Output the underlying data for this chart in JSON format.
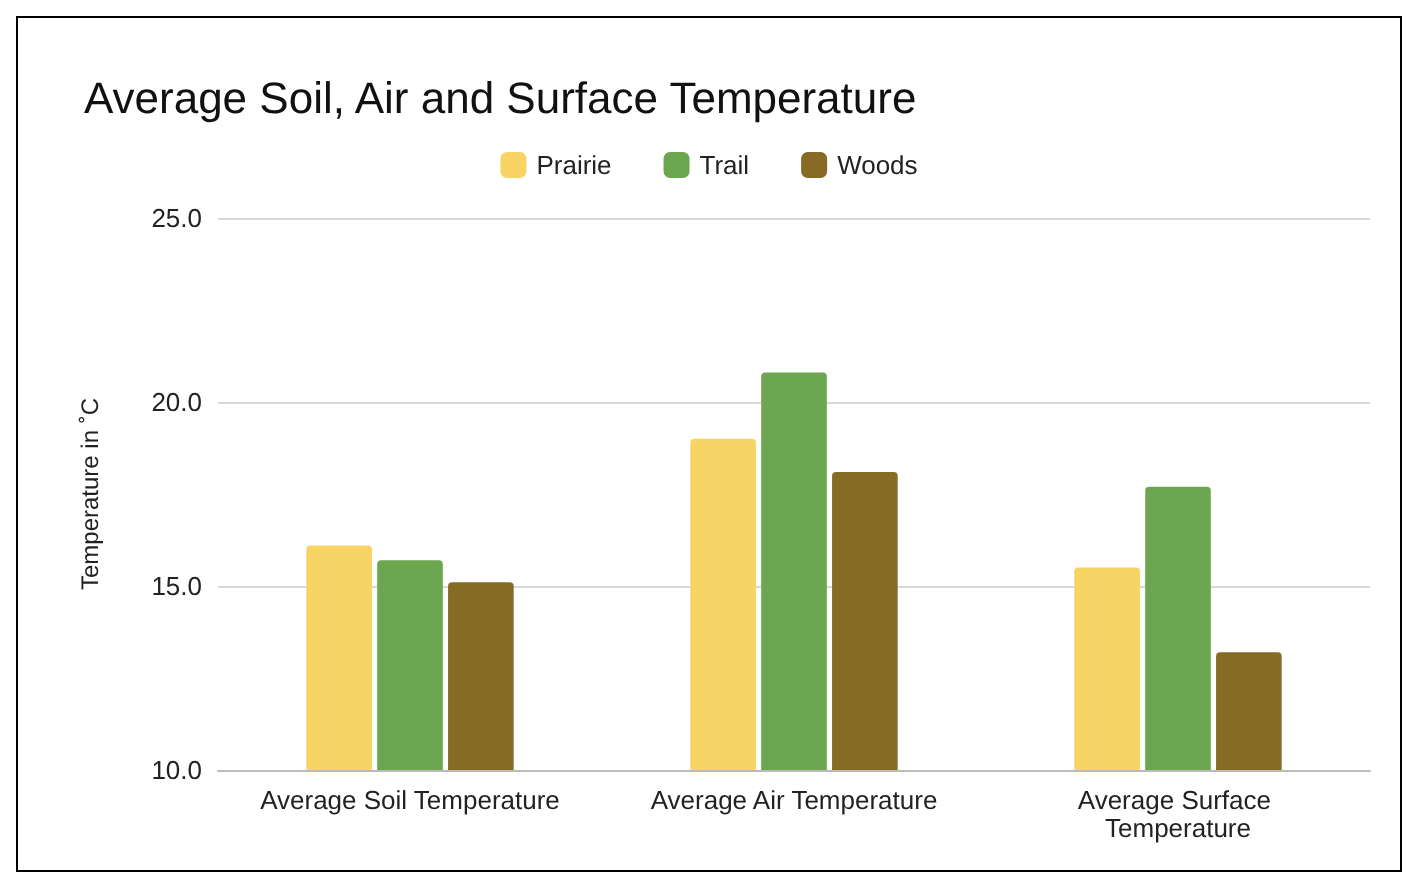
{
  "chart_data": {
    "type": "bar",
    "title": "Average Soil, Air and Surface Temperature",
    "ylabel": "Temperature in ˚C",
    "categories": [
      "Average Soil Temperature",
      "Average Air Temperature",
      "Average Surface Temperature"
    ],
    "series": [
      {
        "name": "Prairie",
        "color": "#f7d463",
        "values": [
          16.1,
          19.0,
          15.5
        ]
      },
      {
        "name": "Trail",
        "color": "#6ca74f",
        "values": [
          15.7,
          20.8,
          17.7
        ]
      },
      {
        "name": "Woods",
        "color": "#876a24",
        "values": [
          15.1,
          18.1,
          13.2
        ]
      }
    ],
    "ylim": [
      10,
      25
    ],
    "yticks": [
      {
        "value": 10,
        "label": "10.0"
      },
      {
        "value": 15,
        "label": "15.0"
      },
      {
        "value": 20,
        "label": "20.0"
      },
      {
        "value": 25,
        "label": "25.0"
      }
    ],
    "grid": "y",
    "legend": "top"
  }
}
